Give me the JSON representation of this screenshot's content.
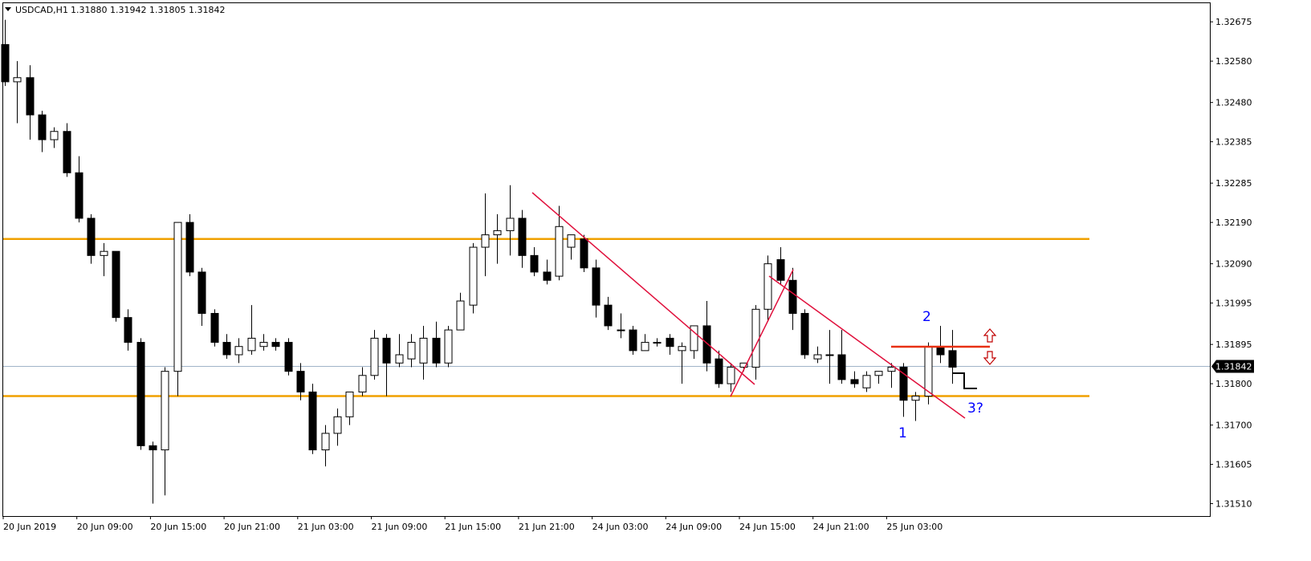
{
  "header": {
    "symbol": "USDCAD,H1",
    "ohlc": "1.31880 1.31942 1.31805 1.31842"
  },
  "colors": {
    "background": "#ffffff",
    "bull_body": "#ffffff",
    "bear_body": "#000000",
    "wick": "#000000",
    "level_line": "#f0a000",
    "trend_line": "#e0103c",
    "breakout_line": "#e83010",
    "wave_label": "#0000ff",
    "arrow": "#c00000",
    "price_line": "#a0b4c8",
    "price_tag_bg": "#000000",
    "price_tag_text": "#ffffff"
  },
  "chart_data": {
    "type": "candlestick",
    "timeframe": "H1",
    "ylim": [
      1.3148,
      1.3272
    ],
    "y_ticks": [
      "1.32675",
      "1.32580",
      "1.32480",
      "1.32385",
      "1.32285",
      "1.32190",
      "1.32090",
      "1.31995",
      "1.31895",
      "1.31800",
      "1.31700",
      "1.31605",
      "1.31510"
    ],
    "x_ticks": [
      "20 Jun 2019",
      "20 Jun 09:00",
      "20 Jun 15:00",
      "20 Jun 21:00",
      "21 Jun 03:00",
      "21 Jun 09:00",
      "21 Jun 15:00",
      "21 Jun 21:00",
      "24 Jun 03:00",
      "24 Jun 09:00",
      "24 Jun 15:00",
      "24 Jun 21:00",
      "25 Jun 03:00"
    ],
    "current_price": 1.31842,
    "current_price_label": "1.31842",
    "candles": [
      [
        1.3262,
        1.3268,
        1.3252,
        1.3253
      ],
      [
        1.3253,
        1.3258,
        1.3243,
        1.3254
      ],
      [
        1.3254,
        1.3257,
        1.3239,
        1.3245
      ],
      [
        1.3245,
        1.3246,
        1.3236,
        1.3239
      ],
      [
        1.3239,
        1.3242,
        1.3237,
        1.3241
      ],
      [
        1.3241,
        1.3243,
        1.323,
        1.3231
      ],
      [
        1.3231,
        1.3235,
        1.3219,
        1.322
      ],
      [
        1.322,
        1.3221,
        1.3209,
        1.3211
      ],
      [
        1.3211,
        1.3214,
        1.3206,
        1.3212
      ],
      [
        1.3212,
        1.3212,
        1.3195,
        1.3196
      ],
      [
        1.3196,
        1.3198,
        1.3188,
        1.319
      ],
      [
        1.319,
        1.3191,
        1.3164,
        1.3165
      ],
      [
        1.3165,
        1.3166,
        1.3151,
        1.3164
      ],
      [
        1.3164,
        1.3184,
        1.3153,
        1.3183
      ],
      [
        1.3183,
        1.3219,
        1.3177,
        1.3219
      ],
      [
        1.3219,
        1.3221,
        1.3206,
        1.3207
      ],
      [
        1.3207,
        1.3208,
        1.3194,
        1.3197
      ],
      [
        1.3197,
        1.3198,
        1.3189,
        1.319
      ],
      [
        1.319,
        1.3192,
        1.3186,
        1.3187
      ],
      [
        1.3187,
        1.3191,
        1.3185,
        1.3189
      ],
      [
        1.3188,
        1.3199,
        1.3187,
        1.3191
      ],
      [
        1.3189,
        1.3192,
        1.3188,
        1.319
      ],
      [
        1.319,
        1.3191,
        1.3188,
        1.3189
      ],
      [
        1.319,
        1.3191,
        1.3182,
        1.3183
      ],
      [
        1.3183,
        1.3185,
        1.3176,
        1.3178
      ],
      [
        1.3178,
        1.318,
        1.3163,
        1.3164
      ],
      [
        1.3164,
        1.317,
        1.316,
        1.3168
      ],
      [
        1.3168,
        1.3174,
        1.3165,
        1.3172
      ],
      [
        1.3172,
        1.3178,
        1.317,
        1.3178
      ],
      [
        1.3178,
        1.3184,
        1.3177,
        1.3182
      ],
      [
        1.3182,
        1.3193,
        1.3181,
        1.3191
      ],
      [
        1.3191,
        1.3192,
        1.3177,
        1.3185
      ],
      [
        1.3185,
        1.3192,
        1.3184,
        1.3187
      ],
      [
        1.3186,
        1.3192,
        1.3184,
        1.319
      ],
      [
        1.3185,
        1.3194,
        1.3181,
        1.3191
      ],
      [
        1.3191,
        1.3195,
        1.3184,
        1.3185
      ],
      [
        1.3185,
        1.3194,
        1.3184,
        1.3193
      ],
      [
        1.3193,
        1.3202,
        1.3193,
        1.32
      ],
      [
        1.3199,
        1.3214,
        1.3197,
        1.3213
      ],
      [
        1.3213,
        1.3226,
        1.3206,
        1.3216
      ],
      [
        1.3216,
        1.3221,
        1.3209,
        1.3217
      ],
      [
        1.3217,
        1.3228,
        1.3211,
        1.322
      ],
      [
        1.322,
        1.3222,
        1.3208,
        1.3211
      ],
      [
        1.3211,
        1.3213,
        1.3206,
        1.3207
      ],
      [
        1.3207,
        1.321,
        1.3204,
        1.3205
      ],
      [
        1.3206,
        1.3223,
        1.3205,
        1.3218
      ],
      [
        1.3213,
        1.3215,
        1.321,
        1.3216
      ],
      [
        1.3215,
        1.3216,
        1.3207,
        1.3208
      ],
      [
        1.3208,
        1.321,
        1.3196,
        1.3199
      ],
      [
        1.3199,
        1.3201,
        1.3193,
        1.3194
      ],
      [
        1.3193,
        1.3197,
        1.3191,
        1.3193
      ],
      [
        1.3193,
        1.3194,
        1.3187,
        1.3188
      ],
      [
        1.3188,
        1.3192,
        1.3188,
        1.319
      ],
      [
        1.319,
        1.3191,
        1.3189,
        1.319
      ],
      [
        1.3191,
        1.3192,
        1.3187,
        1.3189
      ],
      [
        1.3188,
        1.319,
        1.318,
        1.3189
      ],
      [
        1.3188,
        1.3194,
        1.3186,
        1.3194
      ],
      [
        1.3194,
        1.32,
        1.3183,
        1.3185
      ],
      [
        1.3186,
        1.3188,
        1.3179,
        1.318
      ],
      [
        1.318,
        1.3185,
        1.3178,
        1.3184
      ],
      [
        1.3184,
        1.3185,
        1.3183,
        1.3185
      ],
      [
        1.3184,
        1.3199,
        1.3181,
        1.3198
      ],
      [
        1.3198,
        1.3211,
        1.3195,
        1.3209
      ],
      [
        1.321,
        1.3213,
        1.3204,
        1.3205
      ],
      [
        1.3205,
        1.3208,
        1.3193,
        1.3197
      ],
      [
        1.3197,
        1.3198,
        1.3186,
        1.3187
      ],
      [
        1.3186,
        1.3189,
        1.3185,
        1.3187
      ],
      [
        1.3187,
        1.3193,
        1.318,
        1.3187
      ],
      [
        1.3187,
        1.3193,
        1.318,
        1.3181
      ],
      [
        1.3181,
        1.3183,
        1.3179,
        1.318
      ],
      [
        1.3179,
        1.3183,
        1.3178,
        1.3182
      ],
      [
        1.3182,
        1.3183,
        1.318,
        1.3183
      ],
      [
        1.3183,
        1.3185,
        1.3179,
        1.3184
      ],
      [
        1.3184,
        1.3185,
        1.3172,
        1.3176
      ],
      [
        1.3176,
        1.3178,
        1.3171,
        1.3177
      ],
      [
        1.3177,
        1.319,
        1.3175,
        1.3189
      ],
      [
        1.3189,
        1.3194,
        1.3185,
        1.3187
      ],
      [
        1.3188,
        1.3193,
        1.318,
        1.3184
      ]
    ],
    "levels": [
      1.3215,
      1.3177
    ],
    "annotations": {
      "wave_labels": [
        "1",
        "2",
        "3?"
      ]
    }
  }
}
